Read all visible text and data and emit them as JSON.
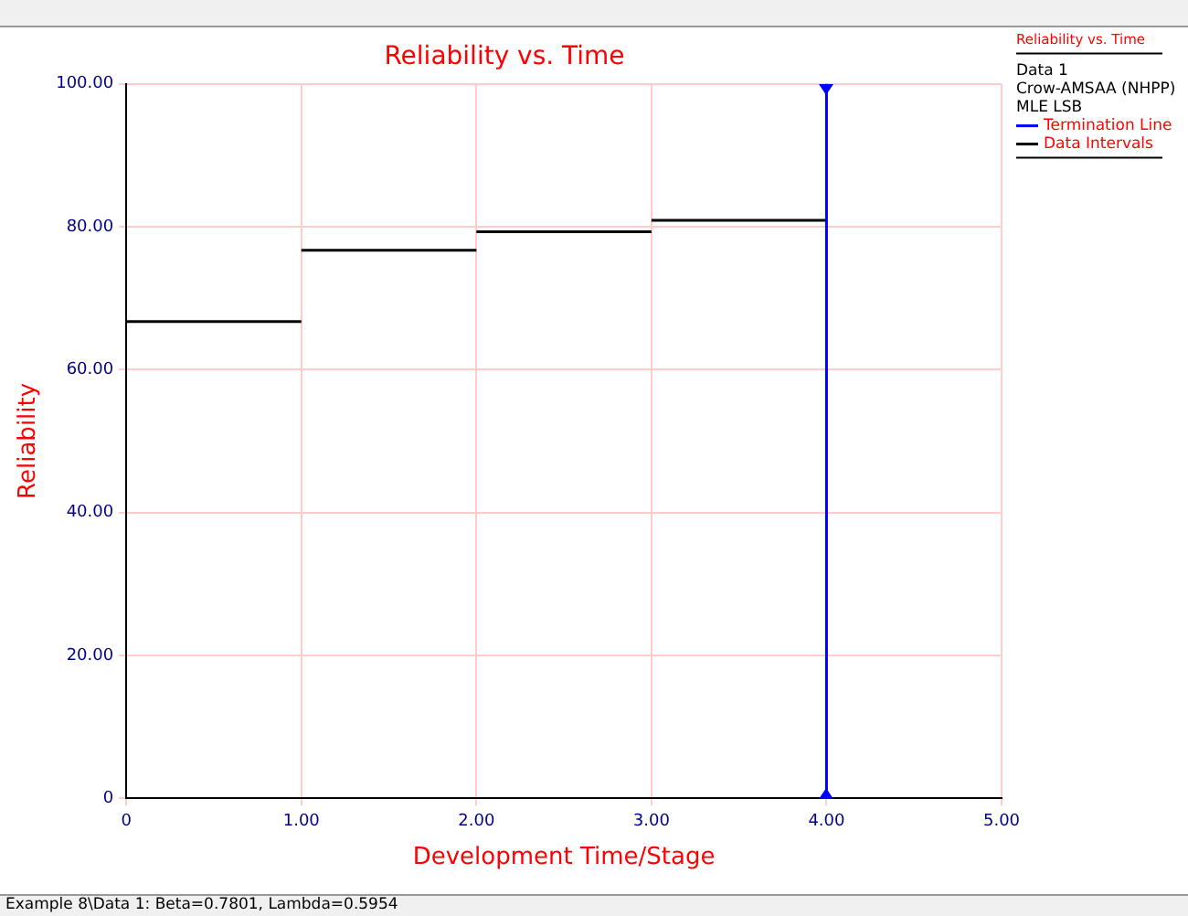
{
  "chart_data": {
    "type": "line",
    "title": "Reliability vs. Time",
    "xlabel": "Development Time/Stage",
    "ylabel": "Reliability",
    "legend_title": "Reliability vs. Time",
    "series": [
      {
        "name": "Termination Line",
        "color": "#0000ff",
        "x": [
          4,
          4
        ],
        "values": [
          0,
          100
        ]
      },
      {
        "name": "Data Intervals",
        "color": "#000000",
        "x": [
          0,
          1
        ],
        "values": [
          66.7,
          66.7
        ]
      },
      {
        "color": "#000000",
        "x": [
          1,
          2
        ],
        "values": [
          76.7,
          76.7
        ]
      },
      {
        "color": "#000000",
        "x": [
          2,
          3
        ],
        "values": [
          79.3,
          79.3
        ]
      },
      {
        "color": "#000000",
        "x": [
          3,
          4
        ],
        "values": [
          80.9,
          80.9
        ]
      }
    ],
    "marker": "none",
    "xlim": [
      0,
      5
    ],
    "xticks": [
      0,
      {
        "value": 1,
        "label": "1.00"
      },
      {
        "value": 2,
        "label": "2.00"
      },
      {
        "value": 3,
        "label": "3.00"
      },
      {
        "value": 4,
        "label": "4.00"
      },
      {
        "value": 5,
        "label": "5.00"
      }
    ],
    "ylim": [
      0,
      100
    ],
    "yticks": [
      0,
      {
        "value": 20,
        "label": "20.00"
      },
      {
        "value": 40,
        "label": "40.00"
      },
      {
        "value": 60,
        "label": "60.00"
      },
      {
        "value": 80,
        "label": "80.00"
      },
      {
        "value": 100,
        "label": "100.00"
      }
    ],
    "grid": true,
    "legend": "top right",
    "annotations": [
      "Data 1",
      "Crow-AMSAA (NHPP)",
      "MLE LSB",
      "Example 8\\Data 1: Beta=0.7801, Lambda=0.5954"
    ]
  }
}
